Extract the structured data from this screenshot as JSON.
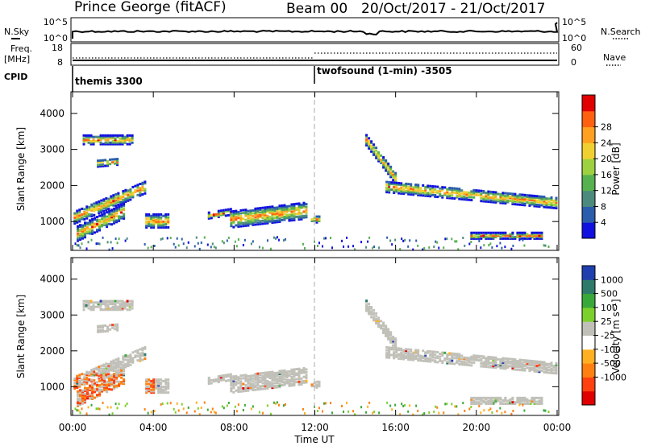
{
  "header": {
    "station": "Prince George (fitACF)",
    "beam": "Beam 00",
    "date_range": "20/Oct/2017 - 21/Oct/2017"
  },
  "noise_panel": {
    "left_label": "N.Sky",
    "left_ticks": [
      "10^5",
      "10^0"
    ],
    "right_label": "N.Search",
    "right_ticks": [
      "10^5",
      "10^0"
    ]
  },
  "freq_panel": {
    "left_label_1": "Freq.",
    "left_label_2": "[MHz]",
    "left_ticks": [
      "18",
      "8"
    ],
    "right_label": "Nave",
    "right_ticks": [
      "60",
      "0"
    ]
  },
  "cpid_panel": {
    "label": "CPID",
    "programs": [
      "themis 3300",
      "twofsound (1-min) -3505"
    ]
  },
  "chart_data": [
    {
      "type": "heatmap",
      "name": "power",
      "ylabel": "Slant Range [km]",
      "y_ticks": [
        1000,
        2000,
        3000,
        4000
      ],
      "ylim": [
        200,
        4600
      ],
      "x_ticks": [
        "00:00",
        "04:00",
        "08:00",
        "12:00",
        "16:00",
        "20:00",
        "00:00"
      ],
      "xlim_hours": [
        0,
        24
      ],
      "colorbar": {
        "label": "Power [dB]",
        "ticks": [
          "4",
          "8",
          "12",
          "16",
          "20",
          "24",
          "28"
        ],
        "colors": [
          "#1010e0",
          "#2a5dab",
          "#4b8a7d",
          "#56b14f",
          "#9ed140",
          "#f0d030",
          "#ffa020",
          "#ff6010",
          "#e00000"
        ]
      },
      "features": [
        {
          "t": [
            0.0,
            3.6
          ],
          "range": [
            600,
            2100
          ],
          "level": "high"
        },
        {
          "t": [
            3.6,
            5.0
          ],
          "range": [
            800,
            1500
          ],
          "level": "mid"
        },
        {
          "t": [
            7.5,
            11.5
          ],
          "range": [
            900,
            1500
          ],
          "level": "mid"
        },
        {
          "t": [
            14.5,
            24.0
          ],
          "range": [
            1400,
            3400
          ],
          "level": "high"
        },
        {
          "t": [
            20.0,
            23.0
          ],
          "range": [
            500,
            900
          ],
          "level": "mid"
        }
      ]
    },
    {
      "type": "heatmap",
      "name": "velocity",
      "ylabel": "Slant Range [km]",
      "y_ticks": [
        1000,
        2000,
        3000,
        4000
      ],
      "ylim": [
        200,
        4600
      ],
      "x_ticks": [
        "00:00",
        "04:00",
        "08:00",
        "12:00",
        "16:00",
        "20:00",
        "00:00"
      ],
      "xlabel": "Time UT",
      "colorbar": {
        "label": "Velocity [m s⁻¹]",
        "ticks": [
          "1000",
          "500",
          "100",
          "25",
          "-25",
          "-100",
          "-500",
          "-1000"
        ],
        "colors": [
          "#1f3fae",
          "#2d7a6a",
          "#39a83a",
          "#7cd02c",
          "#c0c0b8",
          "#ffffff",
          "#ffb020",
          "#ff8010",
          "#ff4010",
          "#e00000"
        ]
      }
    }
  ]
}
